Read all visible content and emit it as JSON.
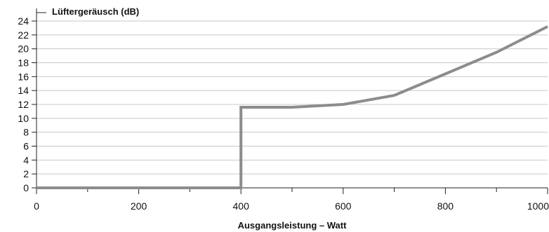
{
  "chart_data": {
    "type": "line",
    "title": "",
    "ylabel": "Lüftergeräusch (dB)",
    "xlabel": "Ausgangsleistung – Watt",
    "xlim": [
      0,
      1000
    ],
    "ylim": [
      0,
      24
    ],
    "x_ticks": [
      0,
      200,
      400,
      600,
      800,
      1000
    ],
    "x_minor_ticks": [
      100,
      300,
      500,
      700,
      900
    ],
    "y_ticks": [
      0,
      2,
      4,
      6,
      8,
      10,
      12,
      14,
      16,
      18,
      20,
      22,
      24
    ],
    "grid": "horizontal",
    "series": [
      {
        "name": "",
        "color": "#8c8c8c",
        "x": [
          0,
          400,
          400,
          500,
          600,
          700,
          800,
          900,
          1000
        ],
        "y": [
          0,
          0,
          11.6,
          11.6,
          12.0,
          13.3,
          16.4,
          19.5,
          23.2
        ]
      }
    ],
    "colors": {
      "grid": "#c8c8c8",
      "axis": "#222222",
      "line": "#8c8c8c"
    }
  }
}
